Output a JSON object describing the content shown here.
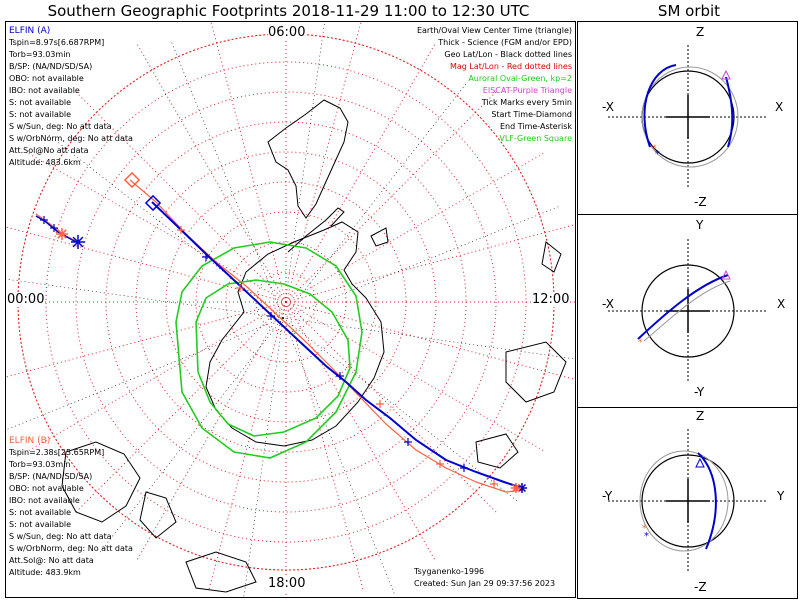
{
  "title": "Southern Geographic Footprints 2018-11-29 11:00 to 12:30 UTC",
  "orbit_title": "SM orbit",
  "clock": {
    "top": "06:00",
    "left": "00:00",
    "right": "12:00",
    "bottom": "18:00"
  },
  "elfin_a": {
    "name": "ELFIN (A)",
    "color": "#0000cc",
    "lines": [
      "Tspin=8.97s[6.687RPM]",
      "Torb=93.03min",
      "B/SP: (NA/ND/SD/SA)",
      "OBO: not available",
      "IBO: not available",
      "S: not available",
      "S: not available",
      "S w/Sun, deg: No att data",
      "S w/OrbNorm, deg: No att data",
      "Att.Sol@No att data",
      "Altitude: 483.6km"
    ]
  },
  "elfin_b": {
    "name": "ELFIN (B)",
    "color": "#ff6040",
    "lines": [
      "Tspin=2.38s[25.65RPM]",
      "Torb=93.03min",
      "B/SP: (NA/ND/SD/SA)",
      "OBO: not available",
      "IBO: not available",
      "S: not available",
      "S: not available",
      "S w/Sun, deg: No att data",
      "S w/OrbNorm, deg: No att data",
      "Att.Sol@: No att data",
      "Altitude: 483.9km"
    ]
  },
  "legend": [
    {
      "text": "Earth/Oval View Center Time (triangle)",
      "color": "#000000"
    },
    {
      "text": "Thick - Science (FGM and/or EPD)",
      "color": "#000000"
    },
    {
      "text": "Geo Lat/Lon - Black dotted lines",
      "color": "#000000"
    },
    {
      "text": "Mag Lat/Lon - Red dotted lines",
      "color": "#dd0000"
    },
    {
      "text": "Auroral Oval-Green, kp=2",
      "color": "#22cc22"
    },
    {
      "text": "EISCAT-Purple Triangle",
      "color": "#cc44cc"
    },
    {
      "text": "Tick Marks every 5min",
      "color": "#000000"
    },
    {
      "text": "Start Time-Diamond",
      "color": "#000000"
    },
    {
      "text": "End Time-Asterisk",
      "color": "#000000"
    },
    {
      "text": "VLF-Green Square",
      "color": "#22cc22"
    }
  ],
  "credit": {
    "author": "Tsyganenko-1996",
    "created": "Created: Sun Jan 29 09:37:56 2023"
  },
  "sm_panels": [
    {
      "top": "Z",
      "bottom": "-Z",
      "left": "-X",
      "right": "X"
    },
    {
      "top": "Y",
      "bottom": "-Y",
      "left": "-X",
      "right": "X"
    },
    {
      "top": "Z",
      "bottom": "-Z",
      "left": "-Y",
      "right": "Y"
    }
  ],
  "colors": {
    "grid_red": "#dd2222",
    "grid_black": "#000000",
    "oval": "#22cc22",
    "track_a": "#0000cc",
    "track_b": "#ff6040",
    "coast": "#000000"
  }
}
